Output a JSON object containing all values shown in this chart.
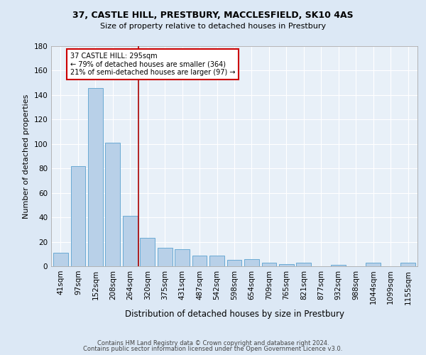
{
  "title1": "37, CASTLE HILL, PRESTBURY, MACCLESFIELD, SK10 4AS",
  "title2": "Size of property relative to detached houses in Prestbury",
  "xlabel": "Distribution of detached houses by size in Prestbury",
  "ylabel": "Number of detached properties",
  "categories": [
    "41sqm",
    "97sqm",
    "152sqm",
    "208sqm",
    "264sqm",
    "320sqm",
    "375sqm",
    "431sqm",
    "487sqm",
    "542sqm",
    "598sqm",
    "654sqm",
    "709sqm",
    "765sqm",
    "821sqm",
    "877sqm",
    "932sqm",
    "988sqm",
    "1044sqm",
    "1099sqm",
    "1155sqm"
  ],
  "values": [
    11,
    82,
    146,
    101,
    41,
    23,
    15,
    14,
    9,
    9,
    5,
    6,
    3,
    2,
    3,
    0,
    1,
    0,
    3,
    0,
    3
  ],
  "bar_color": "#b8d0e8",
  "bar_edge_color": "#6aaad4",
  "background_color": "#dce8f5",
  "plot_bg_color": "#e8f0f8",
  "grid_color": "#ffffff",
  "red_line_x": 4.5,
  "annotation_text": "37 CASTLE HILL: 295sqm\n← 79% of detached houses are smaller (364)\n21% of semi-detached houses are larger (97) →",
  "annotation_box_color": "#ffffff",
  "annotation_box_edge": "#cc0000",
  "red_line_color": "#aa0000",
  "footer1": "Contains HM Land Registry data © Crown copyright and database right 2024.",
  "footer2": "Contains public sector information licensed under the Open Government Licence v3.0.",
  "ylim": [
    0,
    180
  ],
  "yticks": [
    0,
    20,
    40,
    60,
    80,
    100,
    120,
    140,
    160,
    180
  ]
}
